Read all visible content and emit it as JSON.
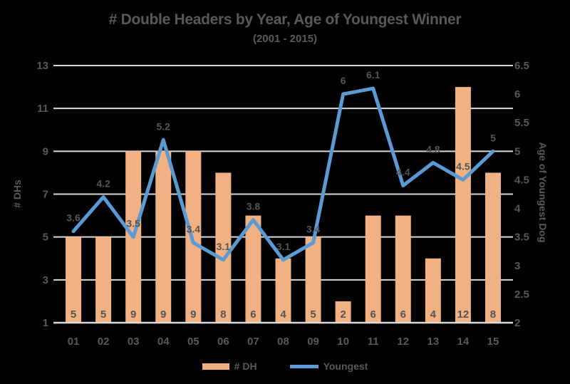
{
  "title": "# Double Headers by Year, Age of Youngest Winner",
  "subtitle": "(2001 - 2015)",
  "left_axis": {
    "title": "# DHs",
    "min": 1,
    "max": 13,
    "ticks": [
      13,
      11,
      9,
      7,
      5,
      3,
      1
    ]
  },
  "right_axis": {
    "title": "Age of Youngest Dog",
    "min": 2,
    "max": 6.5,
    "ticks": [
      6.5,
      6,
      5.5,
      5,
      4.5,
      4,
      3.5,
      3,
      2.5,
      2
    ]
  },
  "legend": [
    {
      "label": "# DH",
      "type": "bar"
    },
    {
      "label": "Youngest",
      "type": "line"
    }
  ],
  "colors": {
    "background": "#000000",
    "bar": "#F2B183",
    "line": "#5B9BD5",
    "grid": "#D9D9D9",
    "text": "#595959",
    "data_label": "#545454"
  },
  "chart_data": {
    "type": "combo",
    "categories": [
      "01",
      "02",
      "03",
      "04",
      "05",
      "06",
      "07",
      "08",
      "09",
      "10",
      "11",
      "12",
      "13",
      "14",
      "15"
    ],
    "series": [
      {
        "name": "# DH",
        "type": "bar",
        "axis": "left",
        "values": [
          5,
          5,
          9,
          9,
          9,
          8,
          6,
          4,
          5,
          2,
          6,
          6,
          4,
          12,
          8
        ]
      },
      {
        "name": "Youngest",
        "type": "line",
        "axis": "right",
        "values": [
          3.6,
          4.2,
          3.5,
          5.2,
          3.4,
          3.1,
          3.8,
          3.1,
          3.4,
          6,
          6.1,
          4.4,
          4.8,
          4.5,
          5
        ]
      }
    ],
    "title": "# Double Headers by Year, Age of Youngest Winner (2001 - 2015)",
    "xlabel": "",
    "ylabel_left": "# DHs",
    "ylabel_right": "Age of Youngest Dog",
    "ylim_left": [
      1,
      13
    ],
    "ylim_right": [
      2,
      6.5
    ],
    "grid": true,
    "legend_position": "bottom",
    "data_labels": true
  }
}
